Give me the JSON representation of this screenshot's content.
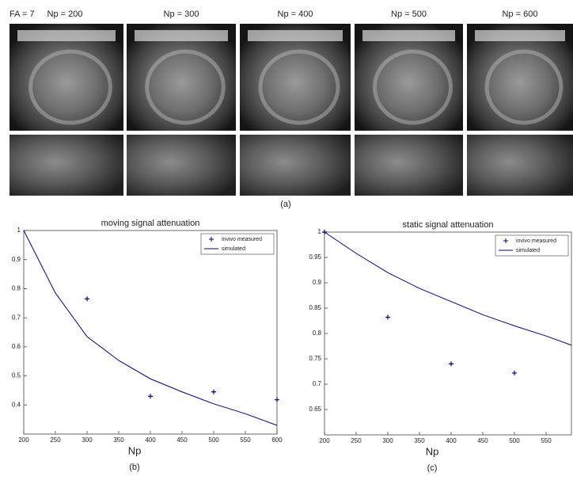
{
  "figure_a": {
    "fa_label": "FA = 7",
    "columns": [
      "Np = 200",
      "Np = 300",
      "Np = 400",
      "Np = 500",
      "Np = 600"
    ],
    "caption": "(a)"
  },
  "chart_data": [
    {
      "type": "scatter-line",
      "title": "moving signal attenuation",
      "xlabel": "Np",
      "caption": "(b)",
      "xlim": [
        200,
        600
      ],
      "xticks": [
        200,
        250,
        300,
        350,
        400,
        450,
        500,
        550,
        600
      ],
      "ylim": [
        0.3,
        1
      ],
      "yticks": [
        0.4,
        0.5,
        0.6,
        0.7,
        0.8,
        0.9,
        1
      ],
      "legend": "top-right",
      "series": [
        {
          "name": "invivo measured",
          "color": "#00008b",
          "marker": "+",
          "x": [
            300,
            400,
            500,
            600
          ],
          "values": [
            0.765,
            0.43,
            0.445,
            0.418
          ]
        },
        {
          "name": "simulated",
          "color": "#00008b",
          "marker": "line",
          "x": [
            200,
            250,
            300,
            350,
            400,
            450,
            500,
            550,
            600
          ],
          "values": [
            1,
            0.785,
            0.635,
            0.553,
            0.49,
            0.445,
            0.404,
            0.37,
            0.33
          ]
        }
      ]
    },
    {
      "type": "scatter-line",
      "title": "static signal attenuation",
      "xlabel": "Np",
      "caption": "(c)",
      "xlim": [
        200,
        590
      ],
      "xticks": [
        200,
        250,
        300,
        350,
        400,
        450,
        500,
        550
      ],
      "ylim": [
        0.6,
        1
      ],
      "yticks": [
        0.65,
        0.7,
        0.75,
        0.8,
        0.85,
        0.9,
        0.95,
        1
      ],
      "legend": "top-right",
      "series": [
        {
          "name": "invivo measured",
          "color": "#00008b",
          "marker": "+",
          "x": [
            200,
            300,
            400,
            500
          ],
          "values": [
            1,
            0.832,
            0.74,
            0.722
          ]
        },
        {
          "name": "simulated",
          "color": "#00008b",
          "marker": "line",
          "x": [
            200,
            250,
            300,
            350,
            400,
            450,
            500,
            550,
            590
          ],
          "values": [
            1,
            0.958,
            0.92,
            0.889,
            0.863,
            0.837,
            0.815,
            0.795,
            0.777
          ]
        }
      ]
    }
  ]
}
